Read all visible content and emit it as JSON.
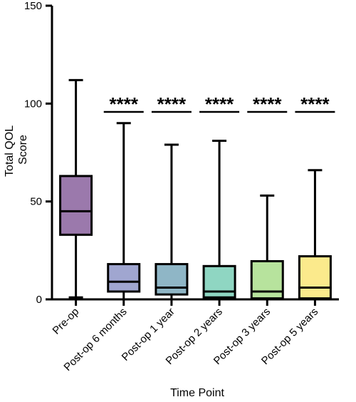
{
  "chart_data": {
    "type": "boxplot",
    "xlabel": "Time Point",
    "ylabel_lines": [
      "Total QOL",
      "Score"
    ],
    "ylim": [
      0,
      150
    ],
    "yticks": [
      0,
      50,
      100,
      150
    ],
    "grid": false,
    "legend": "none",
    "categories": [
      "Pre-op",
      "Post-op 6 months",
      "Post-op 1 year",
      "Post-op 2 years",
      "Post-op 3 years",
      "Post-op 5 years"
    ],
    "boxes": [
      {
        "min": 1,
        "q1": 33,
        "median": 45,
        "q3": 63,
        "max": 112,
        "color": "#9b79ac"
      },
      {
        "min": 0,
        "q1": 4,
        "median": 9,
        "q3": 18,
        "max": 90,
        "color": "#a0a6d0"
      },
      {
        "min": 0,
        "q1": 2.5,
        "median": 6,
        "q3": 18,
        "max": 79,
        "color": "#8fb6c6"
      },
      {
        "min": 0,
        "q1": 1,
        "median": 4,
        "q3": 17,
        "max": 81,
        "color": "#8fd6c2"
      },
      {
        "min": 0,
        "q1": 0.5,
        "median": 4,
        "q3": 19.5,
        "max": 53,
        "color": "#b7e39d"
      },
      {
        "min": 0,
        "q1": 0.5,
        "median": 6,
        "q3": 22,
        "max": 66,
        "color": "#fbea8c"
      }
    ],
    "significance": [
      {
        "category_index": 1,
        "label": "****"
      },
      {
        "category_index": 2,
        "label": "****"
      },
      {
        "category_index": 3,
        "label": "****"
      },
      {
        "category_index": 4,
        "label": "****"
      },
      {
        "category_index": 5,
        "label": "****"
      }
    ]
  }
}
